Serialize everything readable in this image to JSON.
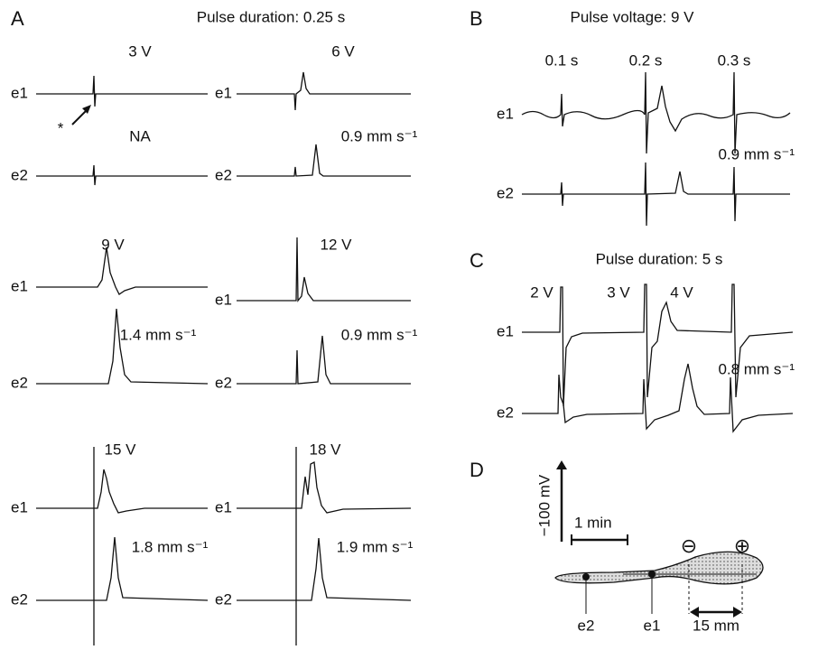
{
  "panels": [
    {
      "label": "A",
      "title": "Pulse duration: 0.25 s",
      "marker": "*",
      "recordings": [
        {
          "stimulus": "3 V",
          "speed": "NA",
          "channels": [
            "e1",
            "e2"
          ]
        },
        {
          "stimulus": "6 V",
          "speed": "0.9 mm s⁻¹",
          "channels": [
            "e1",
            "e2"
          ]
        },
        {
          "stimulus": "9 V",
          "speed": "1.4 mm s⁻¹",
          "channels": [
            "e1",
            "e2"
          ]
        },
        {
          "stimulus": "12 V",
          "speed": "0.9 mm s⁻¹",
          "channels": [
            "e1",
            "e2"
          ]
        },
        {
          "stimulus": "15 V",
          "speed": "1.8 mm s⁻¹",
          "channels": [
            "e1",
            "e2"
          ]
        },
        {
          "stimulus": "18 V",
          "speed": "1.9 mm s⁻¹",
          "channels": [
            "e1",
            "e2"
          ]
        }
      ]
    },
    {
      "label": "B",
      "title": "Pulse voltage: 9 V",
      "stimuli": [
        "0.1 s",
        "0.2 s",
        "0.3 s"
      ],
      "speed": "0.9 mm s⁻¹",
      "channels": [
        "e1",
        "e2"
      ]
    },
    {
      "label": "C",
      "title": "Pulse duration: 5 s",
      "stimuli": [
        "2 V",
        "3 V",
        "4 V"
      ],
      "speed": "0.8 mm s⁻¹",
      "channels": [
        "e1",
        "e2"
      ]
    },
    {
      "label": "D",
      "scale_voltage": "−100 mV",
      "scale_time": "1 min",
      "electrodes": [
        "e2",
        "e1"
      ],
      "poles": [
        "⊖",
        "⊕"
      ],
      "distance": "15 mm"
    }
  ]
}
